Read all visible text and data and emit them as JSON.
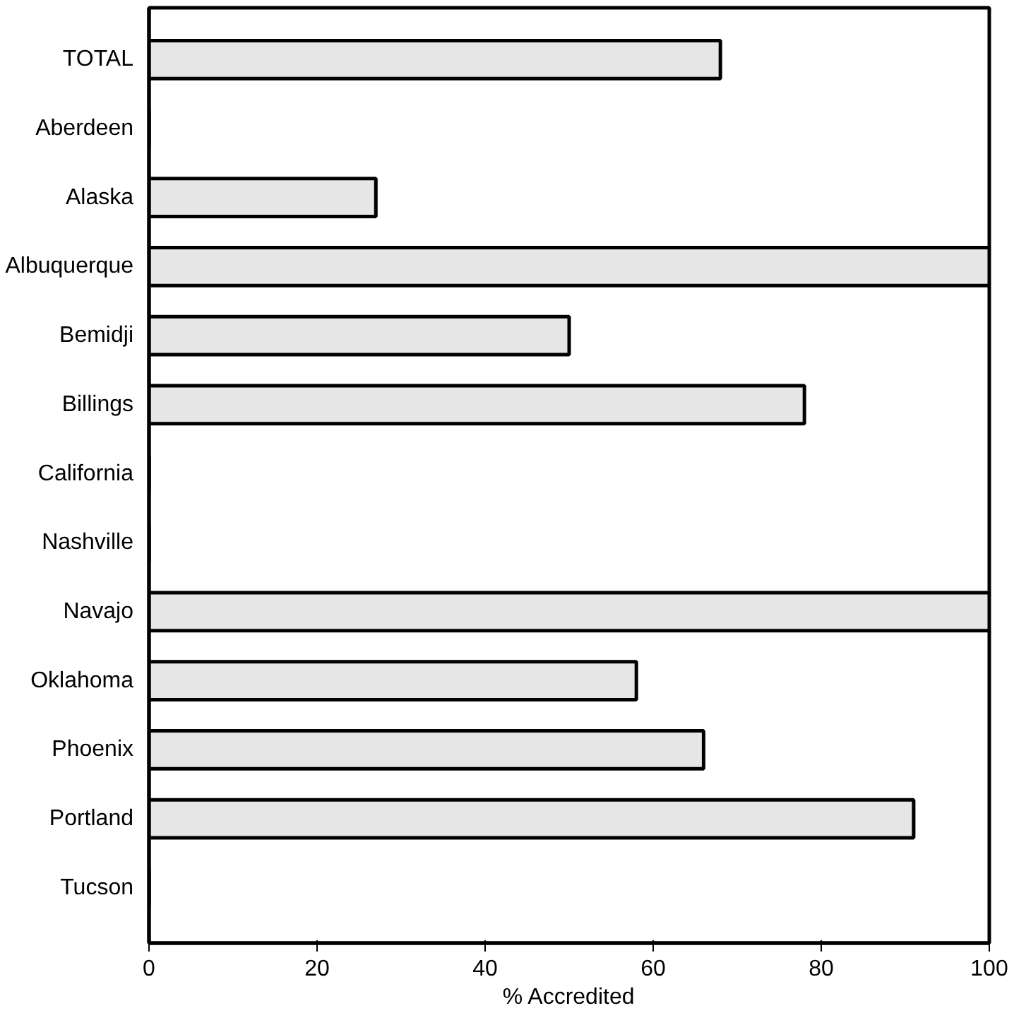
{
  "chart_data": {
    "type": "bar",
    "orientation": "horizontal",
    "xlabel": "% Accredited",
    "categories": [
      "TOTAL",
      "Aberdeen",
      "Alaska",
      "Albuquerque",
      "Bemidji",
      "Billings",
      "California",
      "Nashville",
      "Navajo",
      "Oklahoma",
      "Phoenix",
      "Portland",
      "Tucson"
    ],
    "values": [
      68,
      0,
      27,
      100,
      50,
      78,
      0,
      0,
      100,
      58,
      66,
      91,
      0
    ],
    "color": "#e6e6e6",
    "xlim": [
      0,
      100
    ],
    "xticks": [
      0,
      20,
      40,
      60,
      80,
      100
    ],
    "grid": false
  }
}
